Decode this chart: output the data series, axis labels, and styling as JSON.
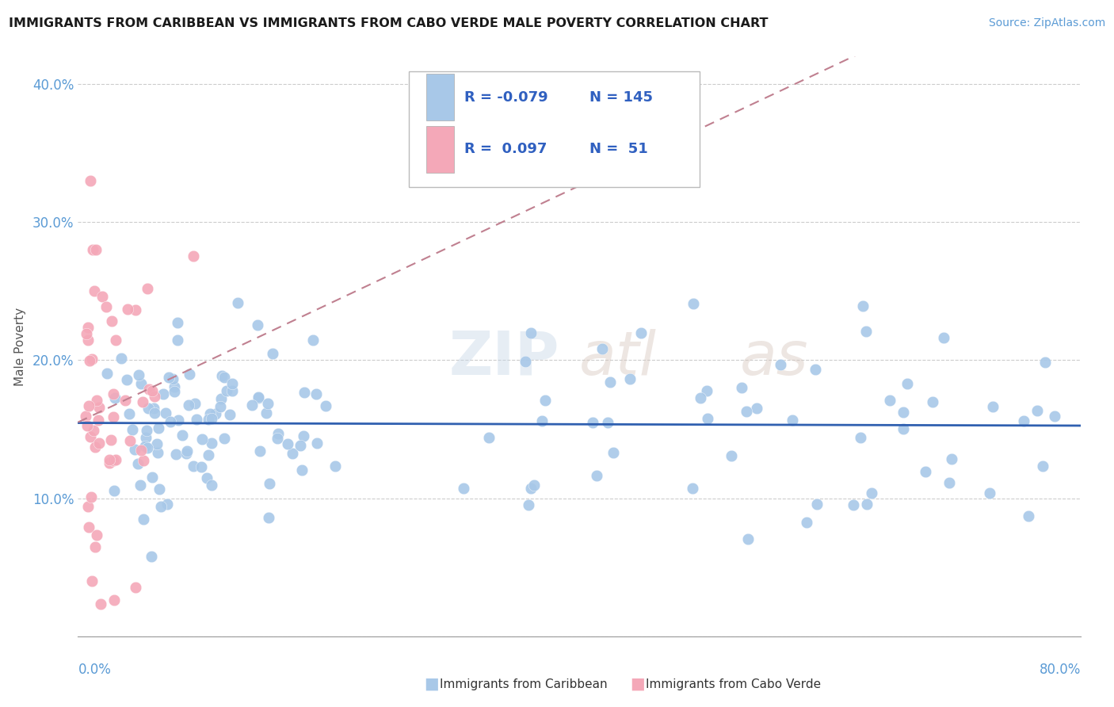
{
  "title": "IMMIGRANTS FROM CARIBBEAN VS IMMIGRANTS FROM CABO VERDE MALE POVERTY CORRELATION CHART",
  "source": "Source: ZipAtlas.com",
  "ylabel": "Male Poverty",
  "xlim": [
    0.0,
    0.8
  ],
  "ylim": [
    0.0,
    0.42
  ],
  "caribbean_color": "#a8c8e8",
  "caboverde_color": "#f4a8b8",
  "caribbean_line_color": "#3060b0",
  "caboverde_line_color": "#c08090",
  "caribbean_R": -0.079,
  "caribbean_N": 145,
  "caboverde_R": 0.097,
  "caboverde_N": 51,
  "legend_text_color": "#3060c0",
  "ytick_color": "#5b9bd5",
  "xtick_color": "#5b9bd5"
}
